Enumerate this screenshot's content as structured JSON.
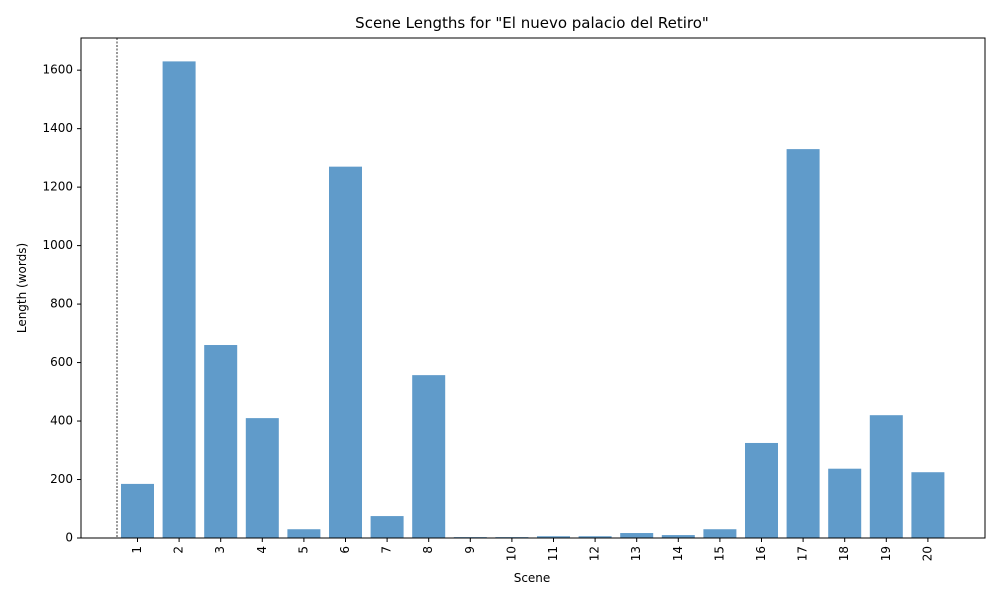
{
  "chart_data": {
    "type": "bar",
    "title": "Scene Lengths for \"El nuevo palacio del Retiro\"",
    "xlabel": "Scene",
    "ylabel": "Length (words)",
    "categories": [
      "1",
      "2",
      "3",
      "4",
      "5",
      "6",
      "7",
      "8",
      "9",
      "10",
      "11",
      "12",
      "13",
      "14",
      "15",
      "16",
      "17",
      "18",
      "19",
      "20"
    ],
    "values": [
      185,
      1630,
      660,
      410,
      30,
      1270,
      75,
      557,
      3,
      3,
      6,
      6,
      17,
      10,
      30,
      325,
      1330,
      237,
      420,
      225
    ],
    "ylim": [
      0,
      1710
    ],
    "yticks": [
      0,
      200,
      400,
      600,
      800,
      1000,
      1200,
      1400,
      1600
    ],
    "bar_color": "#4f90c4",
    "reference_line_color": "#000000",
    "grid": false,
    "legend": "none"
  }
}
